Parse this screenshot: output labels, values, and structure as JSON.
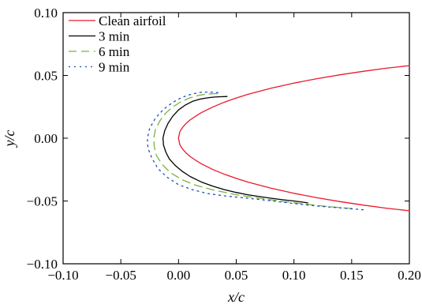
{
  "chart_data": {
    "type": "line",
    "xlabel": "x/c",
    "ylabel": "y/c",
    "xlim": [
      -0.1,
      0.2
    ],
    "ylim": [
      -0.1,
      0.1
    ],
    "xticks": [
      "−0.10",
      "−0.05",
      "0.00",
      "0.05",
      "0.10",
      "0.15",
      "0.20"
    ],
    "xtick_values": [
      -0.1,
      -0.05,
      0.0,
      0.05,
      0.1,
      0.15,
      0.2
    ],
    "yticks": [
      "−0.10",
      "−0.05",
      "0.00",
      "0.05",
      "0.10"
    ],
    "ytick_values": [
      -0.1,
      -0.05,
      0.0,
      0.05,
      0.1
    ],
    "grid": false,
    "legend_position": "top-left",
    "series": [
      {
        "name": "Clean airfoil",
        "color": "#e8192c",
        "style": "solid",
        "x": [
          0.2,
          0.18,
          0.16,
          0.14,
          0.12,
          0.1,
          0.08,
          0.06,
          0.05,
          0.04,
          0.03,
          0.02,
          0.015,
          0.01,
          0.007,
          0.004,
          0.002,
          0.001,
          0.0,
          0.001,
          0.002,
          0.004,
          0.007,
          0.01,
          0.015,
          0.02,
          0.03,
          0.04,
          0.05,
          0.06,
          0.08,
          0.1,
          0.12,
          0.14,
          0.16,
          0.18,
          0.2
        ],
        "y": [
          0.0578,
          0.0557,
          0.0533,
          0.0505,
          0.0474,
          0.0439,
          0.0398,
          0.0349,
          0.032,
          0.0288,
          0.025,
          0.0205,
          0.0177,
          0.0145,
          0.0122,
          0.0092,
          0.0066,
          0.0047,
          0.0,
          -0.0047,
          -0.0066,
          -0.0092,
          -0.0122,
          -0.0145,
          -0.0177,
          -0.0205,
          -0.025,
          -0.0288,
          -0.032,
          -0.0349,
          -0.0398,
          -0.0439,
          -0.0474,
          -0.0505,
          -0.0533,
          -0.0557,
          -0.0578
        ]
      },
      {
        "name": "3 min",
        "color": "#000000",
        "style": "solid",
        "x": [
          0.112,
          0.1,
          0.09,
          0.08,
          0.07,
          0.06,
          0.05,
          0.04,
          0.03,
          0.02,
          0.01,
          0.003,
          -0.003,
          -0.008,
          -0.011,
          -0.013,
          -0.0135,
          -0.012,
          -0.009,
          -0.005,
          0.0,
          0.006,
          0.012,
          0.018,
          0.024,
          0.03,
          0.036,
          0.042
        ],
        "y": [
          -0.0515,
          -0.05,
          -0.049,
          -0.0478,
          -0.0465,
          -0.045,
          -0.0432,
          -0.041,
          -0.0383,
          -0.035,
          -0.0305,
          -0.0262,
          -0.0215,
          -0.0165,
          -0.011,
          -0.0055,
          0.0,
          0.006,
          0.012,
          0.0175,
          0.0225,
          0.0265,
          0.0293,
          0.031,
          0.032,
          0.0327,
          0.033,
          0.0332
        ]
      },
      {
        "name": "6 min",
        "color": "#7cb342",
        "style": "dashed",
        "x": [
          0.15,
          0.13,
          0.11,
          0.09,
          0.07,
          0.05,
          0.03,
          0.015,
          0.003,
          -0.007,
          -0.014,
          -0.019,
          -0.021,
          -0.0215,
          -0.02,
          -0.016,
          -0.011,
          -0.005,
          0.002,
          0.009,
          0.016,
          0.023,
          0.03,
          0.036
        ],
        "y": [
          -0.056,
          -0.0545,
          -0.0525,
          -0.0503,
          -0.0478,
          -0.045,
          -0.0412,
          -0.0375,
          -0.033,
          -0.0275,
          -0.021,
          -0.014,
          -0.007,
          0.0,
          0.007,
          0.014,
          0.02,
          0.025,
          0.029,
          0.0318,
          0.0338,
          0.035,
          0.0355,
          0.0355
        ]
      },
      {
        "name": "9 min",
        "color": "#1a4fbf",
        "style": "dotted",
        "x": [
          0.16,
          0.14,
          0.12,
          0.1,
          0.08,
          0.06,
          0.04,
          0.025,
          0.012,
          0.0,
          -0.01,
          -0.018,
          -0.023,
          -0.0265,
          -0.027,
          -0.025,
          -0.02,
          -0.013,
          -0.005,
          0.003,
          0.011,
          0.019,
          0.027,
          0.035
        ],
        "y": [
          -0.057,
          -0.0555,
          -0.054,
          -0.052,
          -0.0498,
          -0.0478,
          -0.046,
          -0.044,
          -0.041,
          -0.037,
          -0.031,
          -0.024,
          -0.016,
          -0.008,
          0.0,
          0.008,
          0.016,
          0.023,
          0.0285,
          0.0325,
          0.035,
          0.0365,
          0.0368,
          0.0362
        ]
      }
    ]
  }
}
